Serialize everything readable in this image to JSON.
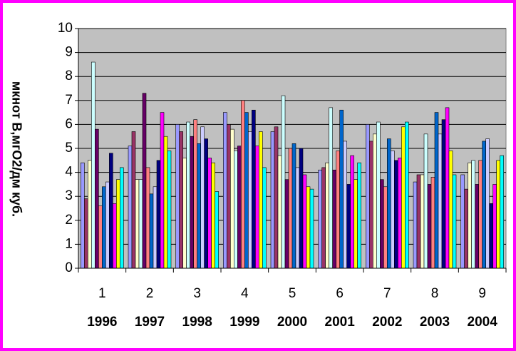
{
  "chart_data": {
    "type": "bar",
    "y_axis_label": "мкнот В,мгО2/дм куб.",
    "categories": [
      "1",
      "2",
      "3",
      "4",
      "5",
      "6",
      "7",
      "8",
      "9"
    ],
    "years": [
      "1996",
      "1997",
      "1998",
      "1999",
      "2000",
      "2001",
      "2002",
      "2003",
      "2004"
    ],
    "ylim": [
      0,
      10
    ],
    "yticks": [
      0,
      1,
      2,
      3,
      4,
      5,
      6,
      7,
      8,
      9,
      10
    ],
    "grid": true,
    "series": [
      {
        "color": "#9999ff",
        "values": [
          4.4,
          5.1,
          6.0,
          6.5,
          5.7,
          4.1,
          6.0,
          3.6,
          3.9
        ]
      },
      {
        "color": "#993366",
        "values": [
          2.9,
          5.7,
          5.7,
          6.0,
          5.9,
          4.2,
          5.3,
          3.9,
          3.3
        ]
      },
      {
        "color": "#ffffcc",
        "values": [
          4.5,
          3.7,
          4.6,
          5.8,
          4.7,
          4.4,
          5.6,
          3.9,
          4.4
        ]
      },
      {
        "color": "#ccffff",
        "values": [
          8.6,
          3.7,
          6.1,
          4.9,
          7.2,
          6.7,
          6.1,
          5.6,
          4.5
        ]
      },
      {
        "color": "#660066",
        "values": [
          5.8,
          7.3,
          5.5,
          5.1,
          3.7,
          4.1,
          3.7,
          3.5,
          3.5
        ]
      },
      {
        "color": "#ff8080",
        "values": [
          2.6,
          4.2,
          6.2,
          7.0,
          5.0,
          4.9,
          3.4,
          3.8,
          4.5
        ]
      },
      {
        "color": "#0066cc",
        "values": [
          3.4,
          3.1,
          5.2,
          6.5,
          5.2,
          6.6,
          5.4,
          6.5,
          5.3
        ]
      },
      {
        "color": "#ccccff",
        "values": [
          3.6,
          3.4,
          5.9,
          5.7,
          4.2,
          5.3,
          4.9,
          5.6,
          5.4
        ]
      },
      {
        "color": "#000080",
        "values": [
          4.8,
          4.5,
          5.4,
          6.6,
          5.0,
          3.5,
          4.5,
          6.2,
          2.7
        ]
      },
      {
        "color": "#ff00ff",
        "values": [
          2.7,
          6.5,
          4.6,
          5.1,
          3.9,
          4.7,
          4.6,
          6.7,
          3.5
        ]
      },
      {
        "color": "#ffff00",
        "values": [
          3.7,
          5.5,
          4.4,
          5.7,
          3.4,
          3.7,
          5.9,
          4.9,
          4.5
        ]
      },
      {
        "color": "#00ffff",
        "values": [
          4.2,
          4.9,
          3.2,
          4.2,
          3.3,
          4.4,
          6.1,
          3.9,
          4.7
        ]
      }
    ]
  }
}
